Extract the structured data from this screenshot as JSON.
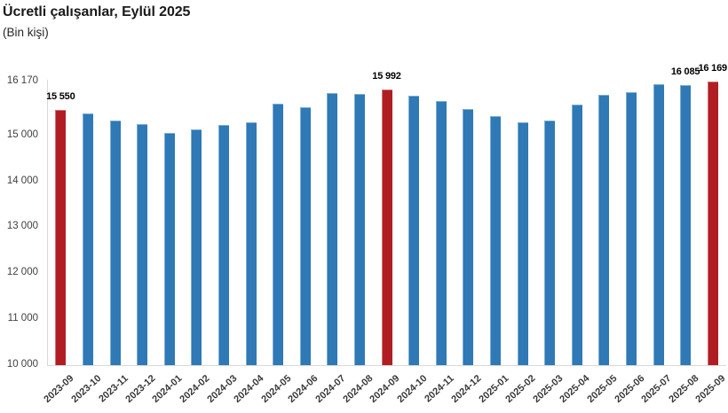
{
  "chart_data": {
    "type": "bar",
    "title": "Ücretli çalışanlar, Eylül 2025",
    "unit_label": "(Bin kişi)",
    "xlabel": "",
    "ylabel": "",
    "categories": [
      "2023-09",
      "2023-10",
      "2023-11",
      "2023-12",
      "2024-01",
      "2024-02",
      "2024-03",
      "2024-04",
      "2024-05",
      "2024-06",
      "2024-07",
      "2024-08",
      "2024-09",
      "2024-10",
      "2024-11",
      "2024-12",
      "2025-01",
      "2025-02",
      "2025-03",
      "2025-04",
      "2025-05",
      "2025-06",
      "2025-07",
      "2025-08",
      "2025-09"
    ],
    "values": [
      15550,
      15470,
      15320,
      15250,
      15060,
      15130,
      15220,
      15290,
      15690,
      15610,
      15910,
      15900,
      15992,
      15860,
      15740,
      15570,
      15410,
      15290,
      15320,
      15670,
      15880,
      15930,
      16120,
      16085,
      16169
    ],
    "highlighted_categories": [
      "2023-09",
      "2024-09",
      "2025-09"
    ],
    "point_labels": [
      {
        "category": "2023-09",
        "text": "15 550"
      },
      {
        "category": "2024-09",
        "text": "15 992"
      },
      {
        "category": "2025-08",
        "text": "16 085"
      },
      {
        "category": "2025-09",
        "text": "16 169"
      }
    ],
    "ylim": [
      10000,
      16170
    ],
    "ytick_values": [
      16170,
      15000,
      14000,
      13000,
      12000,
      11000,
      10000
    ],
    "ytick_labels": [
      "16 170",
      "15 000",
      "14 000",
      "13 000",
      "12 000",
      "11 000",
      "10 000"
    ],
    "grid": false,
    "legend_position": "none",
    "colors": {
      "bar_default": "#2E79B6",
      "bar_highlight": "#B01E24",
      "axis_line": "#D9D9D9",
      "ytick_text": "#404040",
      "xtick_text": "#3A3A3A",
      "data_label_text": "#000000",
      "title_text": "#1A1A1A"
    }
  }
}
